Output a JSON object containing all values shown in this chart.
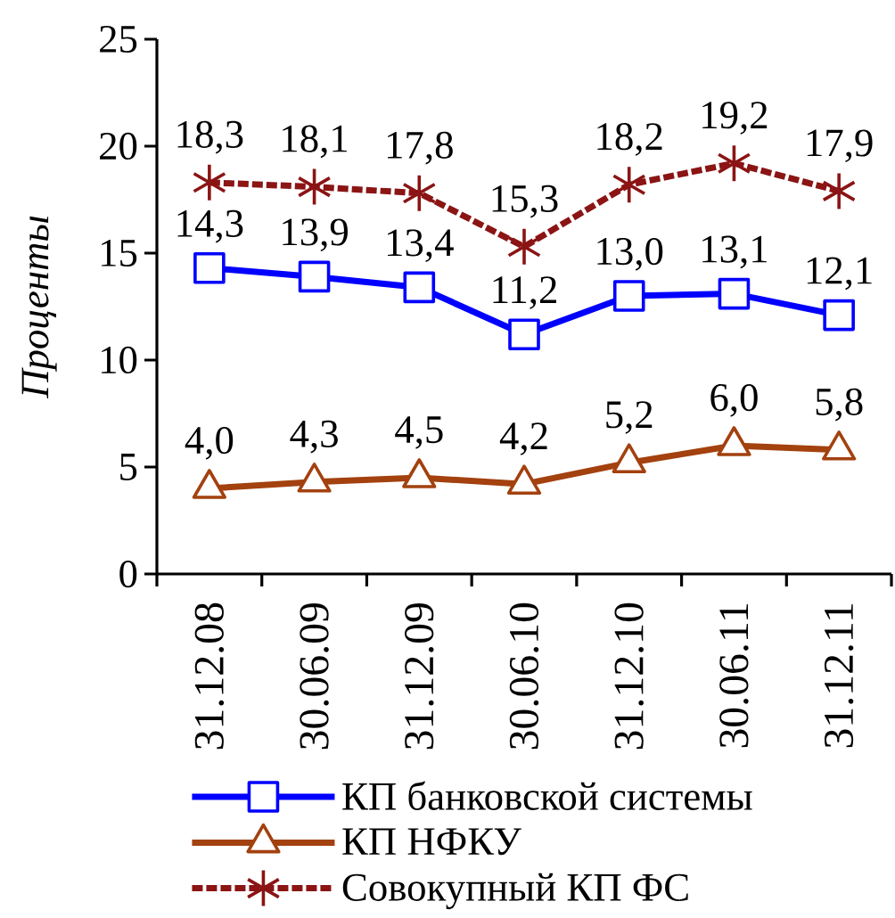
{
  "chart_data": {
    "type": "line",
    "ylabel": "Проценты",
    "categories": [
      "31.12.08",
      "30.06.09",
      "31.12.09",
      "30.06.10",
      "31.12.10",
      "30.06.11",
      "31.12.11"
    ],
    "ylim": [
      0,
      25
    ],
    "yticks": [
      0,
      5,
      10,
      15,
      20,
      25
    ],
    "legend": "bottom",
    "series": [
      {
        "name": "КП банковской системы",
        "color": "#0000ff",
        "marker": "square",
        "values": [
          14.3,
          13.9,
          13.4,
          11.2,
          13.0,
          13.1,
          12.1
        ],
        "value_labels": [
          "14,3",
          "13,9",
          "13,4",
          "11,2",
          "13,0",
          "13,1",
          "12,1"
        ]
      },
      {
        "name": "КП НФКУ",
        "color": "#a3410f",
        "marker": "triangle",
        "values": [
          4.0,
          4.3,
          4.5,
          4.2,
          5.2,
          6.0,
          5.8
        ],
        "value_labels": [
          "4,0",
          "4,3",
          "4,5",
          "4,2",
          "5,2",
          "6,0",
          "5,8"
        ]
      },
      {
        "name": "Совокупный КП ФС",
        "color": "#8b1414",
        "marker": "cross",
        "line_style": "dashed",
        "values": [
          18.3,
          18.1,
          17.8,
          15.3,
          18.2,
          19.2,
          17.9
        ],
        "value_labels": [
          "18,3",
          "18,1",
          "17,8",
          "15,3",
          "18,2",
          "19,2",
          "17,9"
        ]
      }
    ]
  }
}
